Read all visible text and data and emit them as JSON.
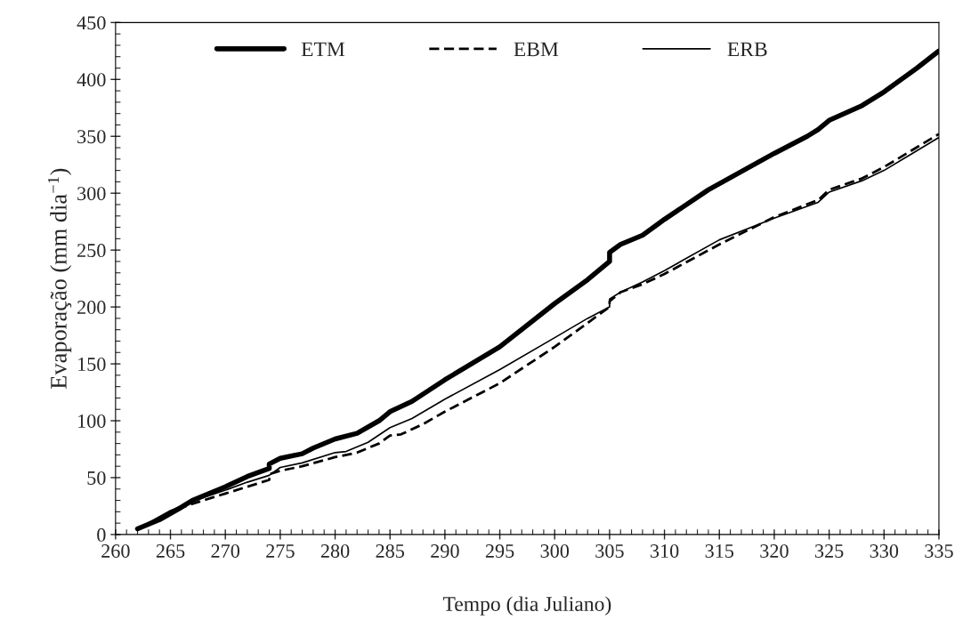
{
  "chart_data": {
    "type": "line",
    "xlabel": "Tempo (dia Juliano)",
    "ylabel": "Evaporação (mm dia$^{−1}$)",
    "xlim": [
      260,
      335
    ],
    "xticks": [
      260,
      265,
      270,
      275,
      280,
      285,
      290,
      295,
      300,
      305,
      310,
      315,
      320,
      325,
      330,
      335
    ],
    "ylim": [
      0,
      450
    ],
    "yticks": [
      0,
      50,
      100,
      150,
      200,
      250,
      300,
      350,
      400,
      450
    ],
    "grid": false,
    "legend": "top left",
    "marker": "none",
    "series": [
      {
        "name": "ETM",
        "color": "#000000",
        "line_style": "solid",
        "x": [
          262,
          264,
          266,
          267,
          270,
          272,
          274,
          274,
          275,
          277,
          278,
          280,
          282,
          284,
          285,
          287,
          290,
          295,
          300,
          303,
          305,
          305,
          306,
          308,
          310,
          314,
          317,
          320,
          323,
          324,
          325,
          328,
          330,
          333,
          335
        ],
        "values": [
          5,
          13,
          24,
          30,
          42,
          51,
          58,
          62,
          67,
          71,
          76,
          84,
          89,
          100,
          108,
          117,
          136,
          165,
          203,
          224,
          240,
          248,
          255,
          263,
          277,
          303,
          319,
          335,
          350,
          356,
          364,
          377,
          389,
          410,
          425
        ]
      },
      {
        "name": "EBM",
        "color": "#000000",
        "line_style": "dashed",
        "x": [
          262,
          265,
          267,
          270,
          272,
          274,
          274,
          275,
          277,
          280,
          282,
          284,
          285,
          286,
          288,
          290,
          295,
          300,
          303,
          305,
          305,
          306,
          308,
          310,
          315,
          320,
          324,
          325,
          328,
          330,
          335
        ],
        "values": [
          4,
          20,
          27,
          36,
          42,
          48,
          53,
          56,
          60,
          68,
          72,
          80,
          87,
          88,
          97,
          108,
          133,
          165,
          186,
          200,
          205,
          213,
          220,
          229,
          255,
          279,
          294,
          303,
          313,
          323,
          352
        ]
      },
      {
        "name": "ERB",
        "color": "#000000",
        "line_style": "solid",
        "x": [
          262,
          265,
          267,
          270,
          272,
          274,
          275,
          277,
          280,
          281,
          283,
          285,
          287,
          290,
          295,
          300,
          303,
          305,
          305,
          306,
          308,
          310,
          315,
          320,
          324,
          325,
          328,
          330,
          335
        ],
        "values": [
          5,
          21,
          29,
          39,
          46,
          52,
          59,
          63,
          72,
          73,
          81,
          94,
          102,
          119,
          145,
          173,
          190,
          200,
          207,
          213,
          222,
          232,
          259,
          278,
          292,
          301,
          311,
          320,
          349
        ]
      }
    ]
  }
}
